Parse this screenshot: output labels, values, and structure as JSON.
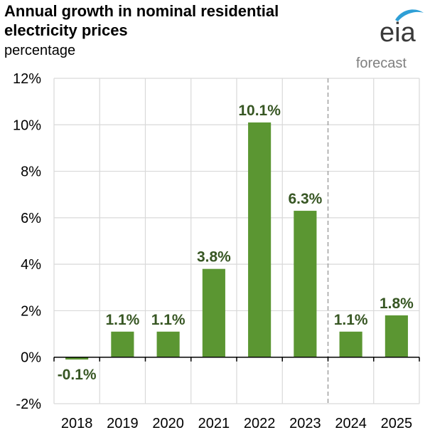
{
  "chart_data": {
    "type": "bar",
    "title": "Annual growth in nominal residential electricity prices",
    "subtitle": "percentage",
    "categories": [
      "2018",
      "2019",
      "2020",
      "2021",
      "2022",
      "2023",
      "2024",
      "2025"
    ],
    "values": [
      -0.1,
      1.1,
      1.1,
      3.8,
      10.1,
      6.3,
      1.1,
      1.8
    ],
    "data_labels": [
      "-0.1%",
      "1.1%",
      "1.1%",
      "3.8%",
      "10.1%",
      "6.3%",
      "1.1%",
      "1.8%"
    ],
    "ylim": [
      -2,
      12
    ],
    "yticks": [
      -2,
      0,
      2,
      4,
      6,
      8,
      10,
      12
    ],
    "ytick_labels": [
      "-2%",
      "0%",
      "2%",
      "4%",
      "6%",
      "8%",
      "10%",
      "12%"
    ],
    "xlabel": "",
    "ylabel": "",
    "forecast_label": "forecast",
    "forecast_start_category": "2024",
    "grid": true,
    "bar_color": "#5b9632",
    "label_color": "#375623",
    "grid_color": "#d9d9d9",
    "forecast_line_color": "#a6a6a6"
  },
  "logo": {
    "text": "eia",
    "name": "eia-logo"
  }
}
